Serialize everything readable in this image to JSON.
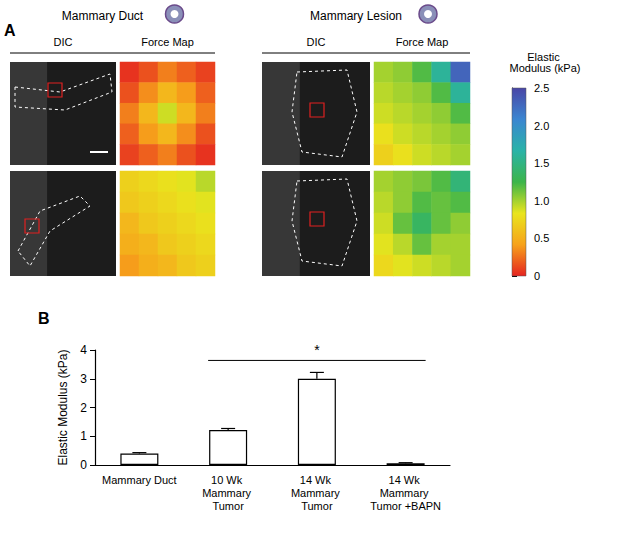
{
  "panel_letters": [
    "A",
    "B"
  ],
  "panel_a": {
    "groups": [
      {
        "title": "Mammary Duct",
        "columns": [
          "DIC",
          "Force Map"
        ],
        "force_maps": [
          [
            [
              0.05,
              0.15,
              0.3,
              0.2,
              0.1
            ],
            [
              0.15,
              0.35,
              0.55,
              0.4,
              0.2
            ],
            [
              0.3,
              0.55,
              0.9,
              0.55,
              0.3
            ],
            [
              0.2,
              0.4,
              0.55,
              0.35,
              0.15
            ],
            [
              0.1,
              0.2,
              0.3,
              0.15,
              0.05
            ]
          ],
          [
            [
              0.7,
              0.75,
              0.8,
              0.85,
              0.95
            ],
            [
              0.65,
              0.7,
              0.75,
              0.8,
              0.85
            ],
            [
              0.55,
              0.65,
              0.7,
              0.75,
              0.8
            ],
            [
              0.5,
              0.55,
              0.65,
              0.7,
              0.75
            ],
            [
              0.4,
              0.5,
              0.55,
              0.65,
              0.7
            ]
          ]
        ]
      },
      {
        "title": "Mammary Lesion",
        "columns": [
          "DIC",
          "Force Map"
        ],
        "force_maps": [
          [
            [
              1.0,
              1.05,
              1.2,
              1.6,
              2.3
            ],
            [
              0.95,
              1.0,
              1.05,
              1.2,
              1.6
            ],
            [
              0.9,
              0.95,
              1.0,
              1.05,
              1.2
            ],
            [
              0.8,
              0.9,
              0.95,
              1.0,
              1.05
            ],
            [
              0.7,
              0.8,
              0.9,
              0.95,
              1.0
            ]
          ],
          [
            [
              1.0,
              1.05,
              1.1,
              1.2,
              1.45
            ],
            [
              0.95,
              1.05,
              1.2,
              1.15,
              1.2
            ],
            [
              0.9,
              1.15,
              1.35,
              1.15,
              1.05
            ],
            [
              0.85,
              0.95,
              1.15,
              1.0,
              1.0
            ],
            [
              0.75,
              0.85,
              0.9,
              0.95,
              1.0
            ]
          ]
        ]
      }
    ],
    "colorbar": {
      "title": "Elastic Modulus (kPa)",
      "range": [
        0,
        2.5
      ],
      "ticks": [
        0,
        0.5,
        {
          "value": 1,
          "label": "1.0"
        },
        1.5,
        {
          "value": 2,
          "label": "2.0"
        },
        2.5
      ],
      "colors": [
        "#e52420",
        "#f7a21b",
        "#e9e51d",
        "#3cb54a",
        "#2ab3a8",
        "#3b86d1",
        "#4a46a6"
      ]
    }
  },
  "chart_data": {
    "type": "bar",
    "categories": [
      "Mammary Duct",
      "10 Wk Mammary Tumor",
      "14 Wk Mammary Tumor",
      "14 Wk Mammary Tumor +BAPN"
    ],
    "values": [
      0.4,
      1.22,
      3.0,
      0.06
    ],
    "errors": [
      0.03,
      0.05,
      0.22,
      0.02
    ],
    "color": "#ffffff",
    "ylabel": "Elastic Modulus (kPa)",
    "ylim": [
      0,
      4
    ],
    "yticks": [
      0,
      1,
      2,
      3,
      4
    ],
    "grid": false,
    "significance": [
      {
        "from": "10 Wk Mammary Tumor",
        "to": "14 Wk Mammary Tumor +BAPN",
        "label": "*"
      }
    ]
  }
}
